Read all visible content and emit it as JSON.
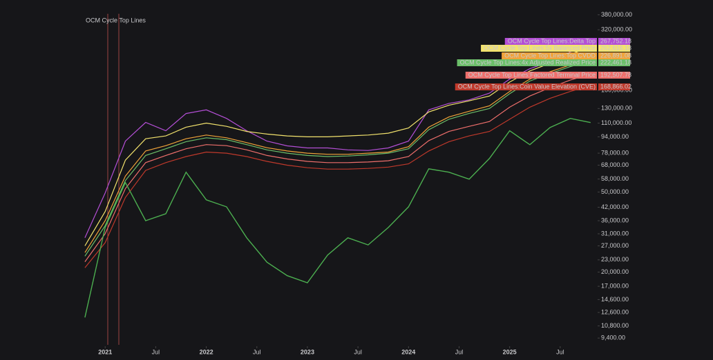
{
  "chart_data": {
    "type": "line",
    "title": "OCM Cycle Top Lines",
    "log_scale": true,
    "x": [
      2020.8,
      2021.0,
      2021.2,
      2021.4,
      2021.6,
      2021.8,
      2022.0,
      2022.2,
      2022.4,
      2022.6,
      2022.8,
      2023.0,
      2023.2,
      2023.4,
      2023.6,
      2023.8,
      2024.0,
      2024.2,
      2024.4,
      2024.6,
      2024.8,
      2025.0,
      2025.2,
      2025.4,
      2025.6,
      2025.8
    ],
    "xlim": [
      2019.96,
      2025.87
    ],
    "xticks": [
      {
        "value": 2021,
        "label": "2021"
      },
      {
        "value": 2021.5,
        "label": "Jul"
      },
      {
        "value": 2022,
        "label": "2022"
      },
      {
        "value": 2022.5,
        "label": "Jul"
      },
      {
        "value": 2023,
        "label": "2023"
      },
      {
        "value": 2023.5,
        "label": "Jul"
      },
      {
        "value": 2024,
        "label": "2024"
      },
      {
        "value": 2024.5,
        "label": "Jul"
      },
      {
        "value": 2025,
        "label": "2025"
      },
      {
        "value": 2025.5,
        "label": "Jul"
      }
    ],
    "ylim": [
      8700,
      450000
    ],
    "yticks": [
      {
        "value": 380000,
        "label": "380,000.00"
      },
      {
        "value": 320000,
        "label": "320,000.00"
      },
      {
        "value": 160000,
        "label": "160,000.00"
      },
      {
        "value": 130000,
        "label": "130,000.00"
      },
      {
        "value": 110000,
        "label": "110,000.00"
      },
      {
        "value": 94000,
        "label": "94,000.00"
      },
      {
        "value": 78000,
        "label": "78,000.00"
      },
      {
        "value": 68000,
        "label": "68,000.00"
      },
      {
        "value": 58000,
        "label": "58,000.00"
      },
      {
        "value": 50000,
        "label": "50,000.00"
      },
      {
        "value": 42000,
        "label": "42,000.00"
      },
      {
        "value": 36000,
        "label": "36,000.00"
      },
      {
        "value": 31000,
        "label": "31,000.00"
      },
      {
        "value": 27000,
        "label": "27,000.00"
      },
      {
        "value": 23000,
        "label": "23,000.00"
      },
      {
        "value": 20000,
        "label": "20,000.00"
      },
      {
        "value": 17000,
        "label": "17,000.00"
      },
      {
        "value": 14600,
        "label": "14,600.00"
      },
      {
        "value": 12600,
        "label": "12,600.00"
      },
      {
        "value": 10800,
        "label": "10,800.00"
      },
      {
        "value": 9400,
        "label": "9,400.00"
      }
    ],
    "series": [
      {
        "name": "OCM Cycle Top Lines:Delta Top",
        "color": "#b44fd6",
        "values": [
          29600,
          49400,
          89500,
          110900,
          100800,
          122800,
          128000,
          116100,
          100800,
          89500,
          84800,
          82800,
          82800,
          81000,
          80400,
          82800,
          89500,
          128000,
          137900,
          143500,
          155000,
          182000,
          205000,
          221700,
          249000,
          267752.18
        ],
        "value_labels": [
          null,
          null,
          null,
          null,
          null,
          null,
          null,
          null,
          null,
          null,
          null,
          null,
          null,
          null,
          null,
          null,
          null,
          null,
          null,
          null,
          null,
          null,
          null,
          null,
          null,
          "267,752.18"
        ]
      },
      {
        "name": "OCM Cycle Top Lines:5x Balanced Price",
        "color": "#f3e36d",
        "values": [
          27000,
          40000,
          72000,
          92000,
          95000,
          105000,
          110000,
          106000,
          100000,
          97000,
          95000,
          94000,
          94000,
          95000,
          96000,
          98000,
          104000,
          125000,
          135000,
          142000,
          150000,
          176000,
          200000,
          218000,
          242000,
          262616.18
        ],
        "value_labels": [
          null,
          null,
          null,
          null,
          null,
          null,
          null,
          null,
          null,
          null,
          null,
          null,
          null,
          null,
          null,
          null,
          null,
          null,
          null,
          null,
          null,
          null,
          null,
          null,
          null,
          "262,616.18"
        ]
      },
      {
        "name": "OCM Cycle Top Lines:Top CVDD",
        "color": "#f0a33a",
        "values": [
          25000,
          36000,
          60000,
          80000,
          85000,
          92000,
          96000,
          93000,
          88000,
          83000,
          80000,
          78000,
          77000,
          77000,
          78000,
          79000,
          84000,
          105000,
          118000,
          126000,
          134000,
          158000,
          182000,
          198000,
          214000,
          226891.08
        ],
        "value_labels": [
          null,
          null,
          null,
          null,
          null,
          null,
          null,
          null,
          null,
          null,
          null,
          null,
          null,
          null,
          null,
          null,
          null,
          null,
          null,
          null,
          null,
          null,
          null,
          null,
          null,
          "226,891.08"
        ]
      },
      {
        "name": "OCM Cycle Top Lines:4x Adjusted Realized Price",
        "color": "#6cbf6a",
        "values": [
          24000,
          34000,
          57000,
          76000,
          82000,
          89000,
          93000,
          91000,
          86000,
          81000,
          78000,
          76000,
          75000,
          75500,
          76500,
          78000,
          82000,
          102000,
          115000,
          123000,
          130000,
          154000,
          178000,
          194000,
          210000,
          222461.18
        ],
        "value_labels": [
          null,
          null,
          null,
          null,
          null,
          null,
          null,
          null,
          null,
          null,
          null,
          null,
          null,
          null,
          null,
          null,
          null,
          null,
          null,
          null,
          null,
          null,
          null,
          null,
          null,
          "222,461.18"
        ]
      },
      {
        "name": "OCM Cycle Top Lines:Factored Terminal Price",
        "color": "#ef6f6c",
        "values": [
          22500,
          31000,
          52000,
          70000,
          76000,
          82000,
          86000,
          85000,
          81000,
          76000,
          73000,
          71000,
          70000,
          70000,
          70500,
          71500,
          75000,
          90000,
          100000,
          106000,
          112000,
          132000,
          150000,
          165000,
          180000,
          192507.78
        ],
        "value_labels": [
          null,
          null,
          null,
          null,
          null,
          null,
          null,
          null,
          null,
          null,
          null,
          null,
          null,
          null,
          null,
          null,
          null,
          null,
          null,
          null,
          null,
          null,
          null,
          null,
          null,
          "192,507.78"
        ]
      },
      {
        "name": "OCM Cycle Top Lines:Coin Value Elevation (CVE)",
        "color": "#c0392b",
        "values": [
          21000,
          28000,
          47000,
          64000,
          70000,
          75000,
          79000,
          78000,
          75000,
          71000,
          68000,
          66000,
          65000,
          65000,
          65500,
          66500,
          69000,
          80000,
          89000,
          95000,
          100000,
          115000,
          132000,
          146000,
          158000,
          168866.02
        ],
        "value_labels": [
          null,
          null,
          null,
          null,
          null,
          null,
          null,
          null,
          null,
          null,
          null,
          null,
          null,
          null,
          null,
          null,
          null,
          null,
          null,
          null,
          null,
          null,
          null,
          null,
          null,
          "168,866.02"
        ]
      },
      {
        "color": "#4caf50",
        "values": [
          11900,
          33300,
          55700,
          36000,
          39000,
          62700,
          45700,
          42200,
          29600,
          22400,
          19200,
          17700,
          24300,
          29600,
          27300,
          33300,
          42200,
          65200,
          62700,
          57900,
          73400,
          100800,
          85900,
          104700,
          116100,
          110700
        ]
      }
    ]
  }
}
